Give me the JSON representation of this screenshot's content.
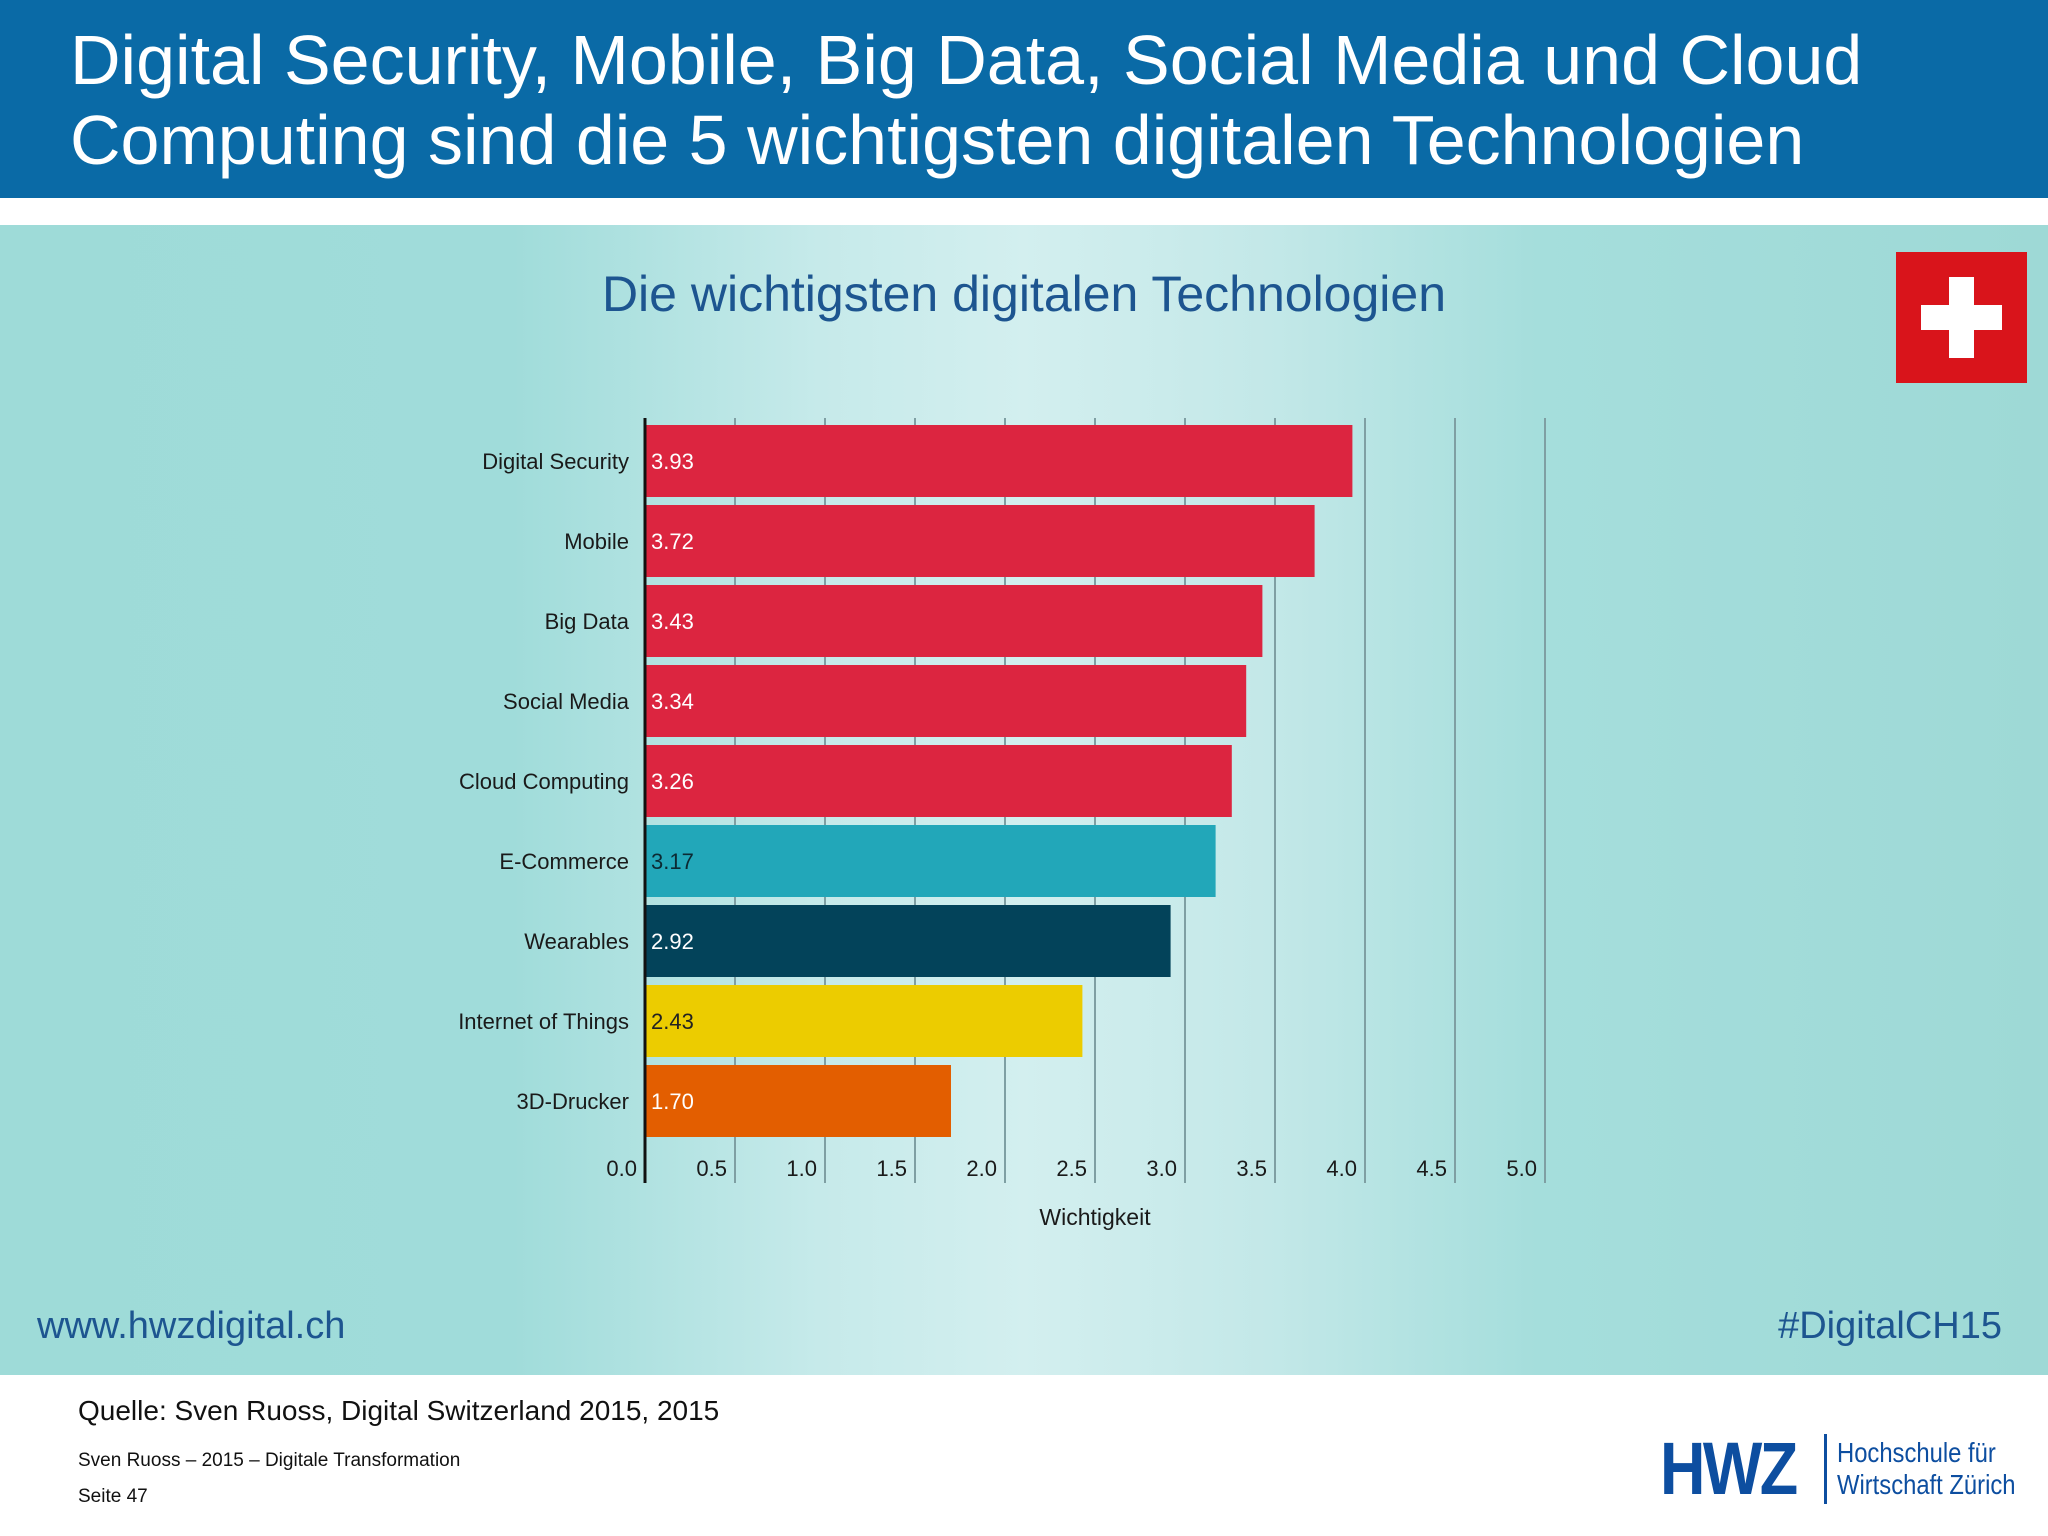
{
  "header": {
    "title": "Digital Security, Mobile, Big Data, Social Media und Cloud Computing sind die 5 wichtigsten digitalen Technologien"
  },
  "panel": {
    "flag_icon": "swiss-flag-icon",
    "url": "www.hwzdigital.ch",
    "hashtag": "#DigitalCH15"
  },
  "chart_data": {
    "type": "bar",
    "orientation": "horizontal",
    "title": "Die wichtigsten digitalen Technologien",
    "xlabel": "Wichtigkeit",
    "ylabel": "",
    "xlim": [
      0,
      5
    ],
    "ticks": [
      "0.0",
      "0.5",
      "1.0",
      "1.5",
      "2.0",
      "2.5",
      "3.0",
      "3.5",
      "4.0",
      "4.5",
      "5.0"
    ],
    "grid": true,
    "categories": [
      "Digital Security",
      "Mobile",
      "Big Data",
      "Social Media",
      "Cloud Computing",
      "E-Commerce",
      "Wearables",
      "Internet of Things",
      "3D-Drucker"
    ],
    "values": [
      3.93,
      3.72,
      3.43,
      3.34,
      3.26,
      3.17,
      2.92,
      2.43,
      1.7
    ],
    "value_labels": [
      "3.93",
      "3.72",
      "3.43",
      "3.34",
      "3.26",
      "3.17",
      "2.92",
      "2.43",
      "1.70"
    ],
    "colors": [
      "#dc2540",
      "#dc2540",
      "#dc2540",
      "#dc2540",
      "#dc2540",
      "#22a7b9",
      "#03435a",
      "#eccc00",
      "#e35e00"
    ],
    "label_colors": [
      "#ffffff",
      "#ffffff",
      "#ffffff",
      "#ffffff",
      "#ffffff",
      "#0c2a33",
      "#ffffff",
      "#222222",
      "#ffffff"
    ]
  },
  "footer": {
    "source": "Quelle: Sven Ruoss, Digital Switzerland 2015, 2015",
    "author": "Sven Ruoss – 2015 – Digitale Transformation",
    "page": "Seite 47",
    "logo_mark": "HWZ",
    "logo_line1": "Hochschule für",
    "logo_line2": "Wirtschaft Zürich"
  }
}
